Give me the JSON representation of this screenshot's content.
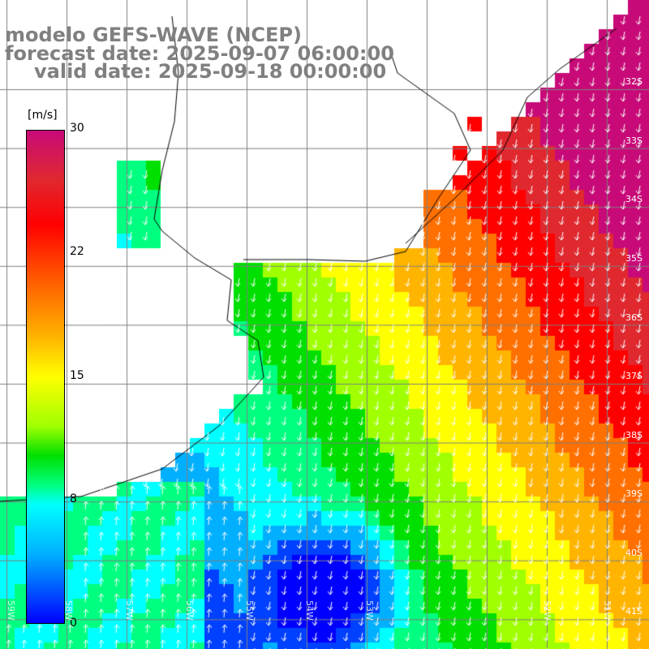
{
  "title": {
    "line1": "modelo GEFS-WAVE (NCEP)",
    "line2": "forecast date: 2025-09-07 06:00:00",
    "line3": "valid date: 2025-09-18 00:00:00"
  },
  "colorbar": {
    "unit": "[m/s]",
    "ticks": [
      "30",
      "22",
      "15",
      "8",
      "0"
    ],
    "tick_values": [
      30,
      22,
      15,
      8,
      0
    ],
    "colors": [
      "#0000ff",
      "#0040ff",
      "#00b0ff",
      "#00ffff",
      "#00ff80",
      "#00e000",
      "#a0ff00",
      "#ffff00",
      "#ffb400",
      "#ff7000",
      "#ff0000",
      "#e0282f",
      "#c80a78"
    ]
  },
  "map": {
    "lat_labels": [
      "32S",
      "33S",
      "34S",
      "35S",
      "36S",
      "37S",
      "38S",
      "39S",
      "40S",
      "41S"
    ],
    "lon_labels": [
      "59W",
      "58W",
      "57W",
      "56W",
      "55W",
      "54W",
      "53W",
      "52W",
      "51W"
    ],
    "colors": {
      "land": "#ffffff",
      "coast": "#000000",
      "grid": "#7f7f7f",
      "arrow": "#ffffff"
    }
  }
}
